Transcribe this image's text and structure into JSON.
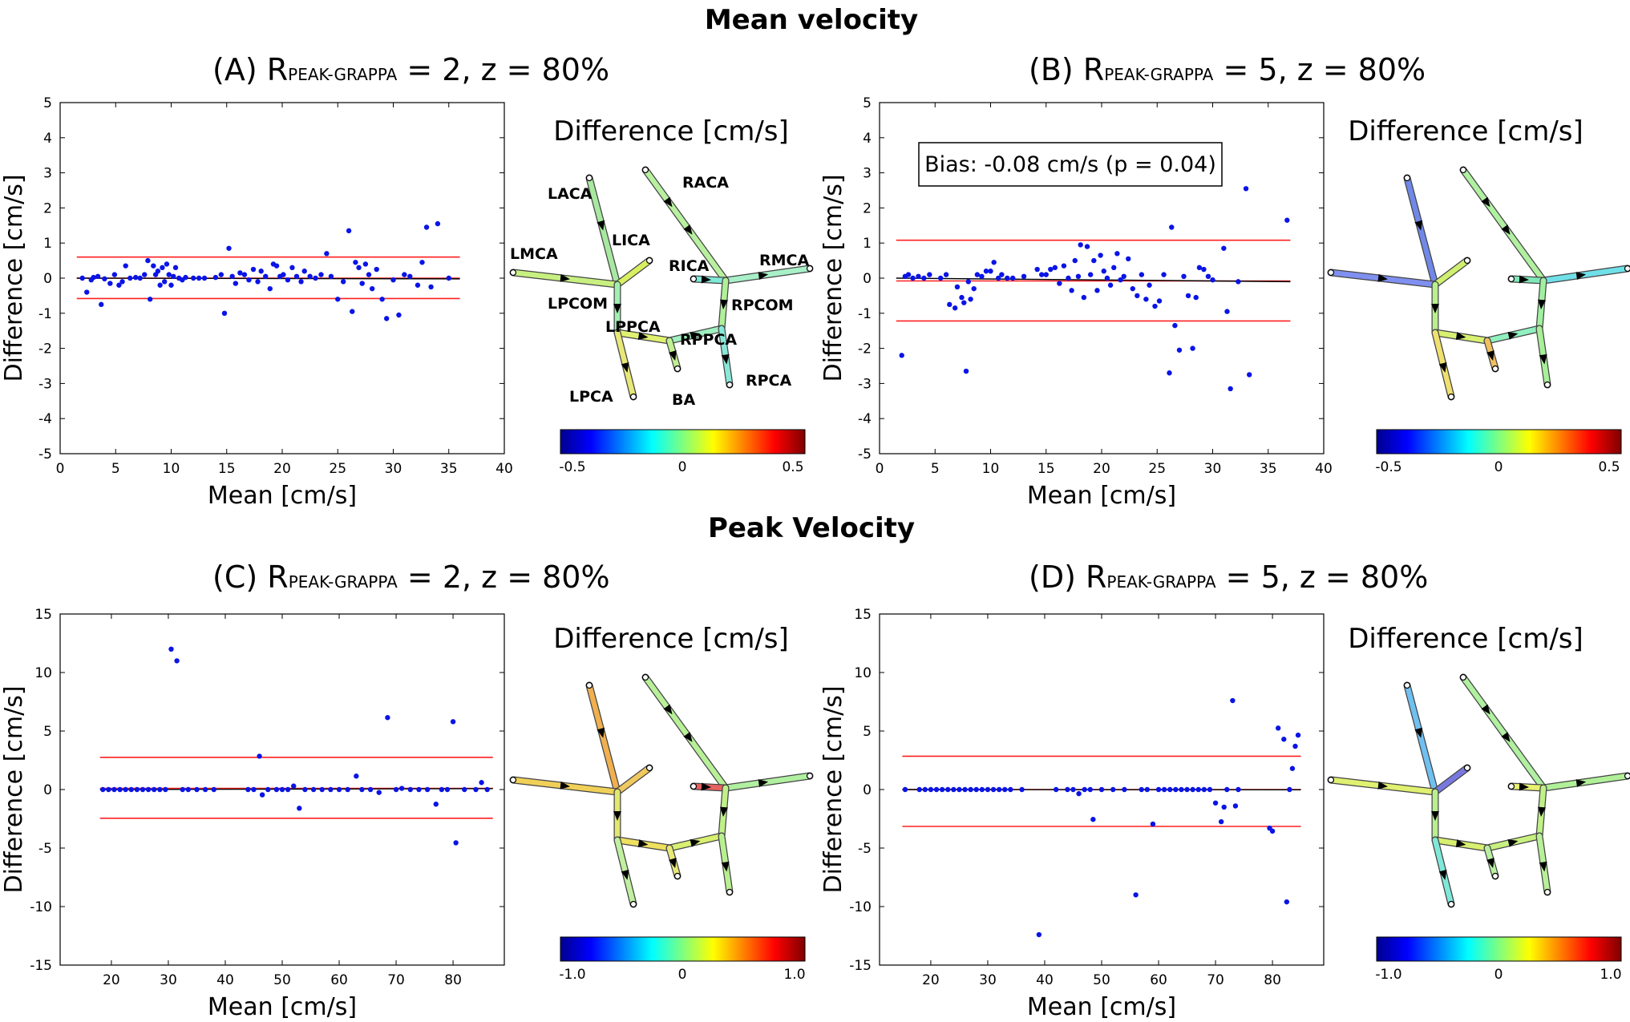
{
  "sections": {
    "top_title": "Mean velocity",
    "bottom_title": "Peak Velocity"
  },
  "panels": [
    {
      "letter": "(A)",
      "r_main": "R",
      "r_sub": "PEAK-GRAPPA",
      "rest": "= 2, z = 80%"
    },
    {
      "letter": "(B)",
      "r_main": "R",
      "r_sub": "PEAK-GRAPPA",
      "rest": "= 5, z = 80%"
    },
    {
      "letter": "(C)",
      "r_main": "R",
      "r_sub": "PEAK-GRAPPA",
      "rest": "= 2, z = 80%"
    },
    {
      "letter": "(D)",
      "r_main": "R",
      "r_sub": "PEAK-GRAPPA",
      "rest": "= 5, z = 80%"
    }
  ],
  "diff_title": "Difference [cm/s]",
  "vessel_labels": [
    "LACA",
    "RACA",
    "LICA",
    "LMCA",
    "RICA",
    "RMCA",
    "LPCOM",
    "RPCOM",
    "LPPCA",
    "RPPCA",
    "LPCA",
    "BA",
    "RPCA"
  ],
  "colorbars": [
    {
      "ticks": [
        "-0.5",
        "0",
        "0.5"
      ]
    },
    {
      "ticks": [
        "-0.5",
        "0",
        "0.5"
      ]
    },
    {
      "ticks": [
        "-1.0",
        "0",
        "1.0"
      ]
    },
    {
      "ticks": [
        "-1.0",
        "0",
        "1.0"
      ]
    }
  ],
  "colors": {
    "points": "#0a14e6",
    "loa": "#ff2020",
    "bias": "#000000"
  },
  "chart_data": [
    {
      "type": "scatter",
      "title": "(A) RPEAK-GRAPPA = 2, z = 80%",
      "xlabel": "Mean [cm/s]",
      "ylabel": "Difference [cm/s]",
      "xlim": [
        0,
        40
      ],
      "ylim": [
        -5,
        5
      ],
      "xticks": [
        0,
        5,
        10,
        15,
        20,
        25,
        30,
        35,
        40
      ],
      "yticks": [
        -5,
        -4,
        -3,
        -2,
        -1,
        0,
        1,
        2,
        3,
        4,
        5
      ],
      "x_range": [
        1.5,
        36
      ],
      "bias": 0.0,
      "loa_upper": 0.6,
      "loa_lower": -0.58,
      "points": [
        [
          2,
          0
        ],
        [
          2.4,
          -0.4
        ],
        [
          2.8,
          -0.05
        ],
        [
          3,
          0.02
        ],
        [
          3.4,
          0.05
        ],
        [
          3.7,
          -0.75
        ],
        [
          4,
          -0.02
        ],
        [
          4.5,
          -0.15
        ],
        [
          4.9,
          0.1
        ],
        [
          5.3,
          -0.2
        ],
        [
          5.6,
          -0.1
        ],
        [
          5.9,
          0.35
        ],
        [
          6.3,
          0
        ],
        [
          6.8,
          0.02
        ],
        [
          7.2,
          0
        ],
        [
          7.6,
          0.1
        ],
        [
          7.9,
          0.5
        ],
        [
          8.1,
          -0.6
        ],
        [
          8.4,
          0.35
        ],
        [
          8.6,
          0.1
        ],
        [
          8.8,
          0.2
        ],
        [
          9,
          -0.2
        ],
        [
          9.2,
          0.3
        ],
        [
          9.4,
          -0.1
        ],
        [
          9.6,
          0.4
        ],
        [
          9.8,
          0.1
        ],
        [
          10,
          -0.2
        ],
        [
          10.2,
          0.05
        ],
        [
          10.4,
          0.3
        ],
        [
          10.7,
          0
        ],
        [
          11,
          -0.05
        ],
        [
          11.3,
          0.02
        ],
        [
          12,
          0
        ],
        [
          12.5,
          0
        ],
        [
          13,
          0
        ],
        [
          14,
          0.02
        ],
        [
          14.5,
          0.1
        ],
        [
          14.8,
          -1.0
        ],
        [
          15.2,
          0.85
        ],
        [
          15.5,
          0.05
        ],
        [
          15.8,
          -0.15
        ],
        [
          16.2,
          0.15
        ],
        [
          16.6,
          0.1
        ],
        [
          17,
          -0.05
        ],
        [
          17.4,
          0.25
        ],
        [
          17.8,
          -0.1
        ],
        [
          18.1,
          0.2
        ],
        [
          18.5,
          0.05
        ],
        [
          18.9,
          -0.3
        ],
        [
          19.2,
          0.4
        ],
        [
          19.5,
          0.35
        ],
        [
          19.8,
          0.05
        ],
        [
          20.1,
          0.1
        ],
        [
          20.5,
          -0.05
        ],
        [
          20.9,
          0.3
        ],
        [
          21.3,
          0.05
        ],
        [
          21.7,
          -0.1
        ],
        [
          22,
          0.2
        ],
        [
          22.5,
          0.05
        ],
        [
          23,
          0
        ],
        [
          23.5,
          0.1
        ],
        [
          24,
          0.7
        ],
        [
          24.4,
          0.05
        ],
        [
          25,
          -0.6
        ],
        [
          25.5,
          -0.1
        ],
        [
          26,
          1.35
        ],
        [
          26.3,
          -0.95
        ],
        [
          26.6,
          0.45
        ],
        [
          26.9,
          0.3
        ],
        [
          27.2,
          -0.15
        ],
        [
          27.5,
          0.4
        ],
        [
          27.8,
          0.1
        ],
        [
          28.1,
          -0.3
        ],
        [
          28.5,
          0.25
        ],
        [
          29,
          -0.6
        ],
        [
          29.4,
          -1.15
        ],
        [
          30,
          -0.05
        ],
        [
          30.5,
          -1.05
        ],
        [
          31,
          0.1
        ],
        [
          31.5,
          0.05
        ],
        [
          32.2,
          -0.2
        ],
        [
          32.6,
          0.45
        ],
        [
          33,
          1.45
        ],
        [
          33.4,
          -0.25
        ],
        [
          34,
          1.55
        ],
        [
          35,
          0
        ]
      ]
    },
    {
      "type": "scatter",
      "title": "(B) RPEAK-GRAPPA = 5, z = 80%",
      "xlabel": "Mean [cm/s]",
      "ylabel": "Difference [cm/s]",
      "xlim": [
        0,
        40
      ],
      "ylim": [
        -5,
        5
      ],
      "xticks": [
        0,
        5,
        10,
        15,
        20,
        25,
        30,
        35,
        40
      ],
      "yticks": [
        -5,
        -4,
        -3,
        -2,
        -1,
        0,
        1,
        2,
        3,
        4,
        5
      ],
      "x_range": [
        1.5,
        37
      ],
      "bias": -0.08,
      "loa_upper": 1.08,
      "loa_lower": -1.22,
      "annotation": "Bias: -0.08 cm/s (p = 0.04)",
      "points": [
        [
          2,
          -2.2
        ],
        [
          2.3,
          0.05
        ],
        [
          2.6,
          0.1
        ],
        [
          3,
          0
        ],
        [
          3.5,
          0.05
        ],
        [
          4,
          0
        ],
        [
          4.5,
          0.1
        ],
        [
          5.5,
          0
        ],
        [
          6,
          0.1
        ],
        [
          6.3,
          -0.75
        ],
        [
          6.8,
          -0.85
        ],
        [
          7,
          -0.25
        ],
        [
          7.4,
          -0.55
        ],
        [
          7.6,
          -0.7
        ],
        [
          7.8,
          -2.65
        ],
        [
          8,
          -0.1
        ],
        [
          8.2,
          -0.6
        ],
        [
          8.5,
          -0.3
        ],
        [
          8.8,
          0.1
        ],
        [
          9.2,
          0.05
        ],
        [
          9.6,
          0.2
        ],
        [
          10,
          0.2
        ],
        [
          10.3,
          0.45
        ],
        [
          10.7,
          0
        ],
        [
          11,
          0.1
        ],
        [
          11.5,
          0
        ],
        [
          12,
          0
        ],
        [
          13,
          0.05
        ],
        [
          14.2,
          0.25
        ],
        [
          14.6,
          0.1
        ],
        [
          15,
          0.1
        ],
        [
          15.4,
          0.25
        ],
        [
          15.8,
          0.3
        ],
        [
          16.2,
          -0.15
        ],
        [
          16.6,
          0.35
        ],
        [
          17,
          0
        ],
        [
          17.3,
          -0.35
        ],
        [
          17.6,
          0.5
        ],
        [
          17.9,
          0.05
        ],
        [
          18.1,
          0.95
        ],
        [
          18.4,
          -0.55
        ],
        [
          18.7,
          0.9
        ],
        [
          19,
          0.1
        ],
        [
          19.3,
          0.5
        ],
        [
          19.6,
          -0.35
        ],
        [
          19.9,
          0.65
        ],
        [
          20.2,
          0.2
        ],
        [
          20.5,
          0
        ],
        [
          20.8,
          -0.2
        ],
        [
          21.1,
          0.3
        ],
        [
          21.4,
          0.7
        ],
        [
          21.7,
          -0.05
        ],
        [
          22,
          0.05
        ],
        [
          22.4,
          0.55
        ],
        [
          22.8,
          -0.3
        ],
        [
          23.2,
          -0.5
        ],
        [
          23.6,
          0.1
        ],
        [
          24,
          -0.6
        ],
        [
          24.3,
          -0.2
        ],
        [
          24.8,
          -0.8
        ],
        [
          25.2,
          -0.65
        ],
        [
          25.6,
          0.1
        ],
        [
          26.1,
          -2.7
        ],
        [
          26.3,
          1.45
        ],
        [
          26.6,
          -1.35
        ],
        [
          27,
          -2.05
        ],
        [
          27.4,
          0.05
        ],
        [
          27.8,
          -0.5
        ],
        [
          28.2,
          -2.0
        ],
        [
          28.5,
          -0.55
        ],
        [
          28.8,
          0.3
        ],
        [
          29.2,
          0.25
        ],
        [
          29.6,
          0.05
        ],
        [
          30,
          -0.05
        ],
        [
          31,
          0.85
        ],
        [
          31.3,
          -0.95
        ],
        [
          31.6,
          -3.15
        ],
        [
          32.3,
          -0.1
        ],
        [
          33,
          2.55
        ],
        [
          33.3,
          -2.75
        ],
        [
          36.7,
          1.65
        ]
      ]
    },
    {
      "type": "scatter",
      "title": "(C) RPEAK-GRAPPA = 2, z = 80%",
      "xlabel": "Mean [cm/s]",
      "ylabel": "Difference [cm/s]",
      "xlim": [
        11,
        89
      ],
      "ylim": [
        -15,
        15
      ],
      "xticks": [
        20,
        30,
        40,
        50,
        60,
        70,
        80
      ],
      "yticks": [
        -15,
        -10,
        -5,
        0,
        5,
        10,
        15
      ],
      "x_range": [
        18,
        87
      ],
      "bias": 0.1,
      "loa_upper": 2.75,
      "loa_lower": -2.45,
      "points": [
        [
          18.5,
          0
        ],
        [
          19.5,
          0
        ],
        [
          20.5,
          0
        ],
        [
          21.5,
          0
        ],
        [
          22.5,
          0
        ],
        [
          23.5,
          0
        ],
        [
          24.5,
          0
        ],
        [
          25.5,
          0
        ],
        [
          26.5,
          0
        ],
        [
          27.5,
          0
        ],
        [
          28.5,
          0
        ],
        [
          29.5,
          0
        ],
        [
          30.5,
          12
        ],
        [
          31.5,
          11
        ],
        [
          32.5,
          0
        ],
        [
          33.5,
          0
        ],
        [
          35,
          0
        ],
        [
          36.5,
          0
        ],
        [
          38,
          0
        ],
        [
          44,
          0
        ],
        [
          45,
          0
        ],
        [
          46,
          2.85
        ],
        [
          46.5,
          -0.45
        ],
        [
          47.5,
          0
        ],
        [
          49,
          0
        ],
        [
          50,
          0
        ],
        [
          51,
          0
        ],
        [
          52,
          0.3
        ],
        [
          53,
          -1.6
        ],
        [
          54,
          0
        ],
        [
          55.5,
          0
        ],
        [
          57,
          0
        ],
        [
          58.5,
          0
        ],
        [
          60,
          0
        ],
        [
          61.5,
          0
        ],
        [
          63,
          1.15
        ],
        [
          64,
          0
        ],
        [
          65.5,
          0
        ],
        [
          67,
          -0.25
        ],
        [
          68.5,
          6.15
        ],
        [
          70,
          0
        ],
        [
          71,
          0.1
        ],
        [
          72.5,
          0
        ],
        [
          74,
          0
        ],
        [
          75.5,
          0
        ],
        [
          77,
          -1.25
        ],
        [
          78,
          0
        ],
        [
          79,
          0
        ],
        [
          80,
          5.8
        ],
        [
          80.5,
          -4.55
        ],
        [
          82,
          0
        ],
        [
          84,
          0
        ],
        [
          85,
          0.6
        ],
        [
          86,
          0
        ]
      ]
    },
    {
      "type": "scatter",
      "title": "(D) RPEAK-GRAPPA = 5, z = 80%",
      "xlabel": "Mean [cm/s]",
      "ylabel": "Difference [cm/s]",
      "xlim": [
        11,
        89
      ],
      "ylim": [
        -15,
        15
      ],
      "xticks": [
        20,
        30,
        40,
        50,
        60,
        70,
        80
      ],
      "yticks": [
        -15,
        -10,
        -5,
        0,
        5,
        10,
        15
      ],
      "x_range": [
        15,
        85
      ],
      "bias": 0.0,
      "loa_upper": 2.85,
      "loa_lower": -3.15,
      "points": [
        [
          15.5,
          0
        ],
        [
          18,
          0
        ],
        [
          19,
          0
        ],
        [
          20,
          0
        ],
        [
          21,
          0
        ],
        [
          22,
          0
        ],
        [
          23,
          0
        ],
        [
          24,
          0
        ],
        [
          25,
          0
        ],
        [
          26,
          0
        ],
        [
          27,
          0
        ],
        [
          28,
          0
        ],
        [
          29,
          0
        ],
        [
          30,
          0
        ],
        [
          31,
          0
        ],
        [
          32,
          0
        ],
        [
          33,
          0
        ],
        [
          34,
          0
        ],
        [
          36,
          0
        ],
        [
          39,
          -12.4
        ],
        [
          42,
          0
        ],
        [
          44,
          0
        ],
        [
          45,
          0
        ],
        [
          46,
          -0.35
        ],
        [
          47,
          0
        ],
        [
          48,
          0
        ],
        [
          48.5,
          -2.55
        ],
        [
          50,
          0
        ],
        [
          52,
          0
        ],
        [
          54,
          0
        ],
        [
          56,
          -9.0
        ],
        [
          57,
          0
        ],
        [
          58,
          0
        ],
        [
          59,
          -2.95
        ],
        [
          60,
          0
        ],
        [
          61,
          0
        ],
        [
          62,
          0
        ],
        [
          63,
          0
        ],
        [
          64,
          0
        ],
        [
          65,
          0
        ],
        [
          66,
          0
        ],
        [
          67,
          0
        ],
        [
          68,
          0
        ],
        [
          69,
          0
        ],
        [
          70,
          -1.15
        ],
        [
          71,
          -2.75
        ],
        [
          71.5,
          -1.5
        ],
        [
          72,
          0
        ],
        [
          73,
          7.6
        ],
        [
          73.5,
          -1.4
        ],
        [
          74,
          0
        ],
        [
          79.5,
          -3.3
        ],
        [
          80,
          -3.55
        ],
        [
          81,
          5.25
        ],
        [
          82,
          4.3
        ],
        [
          82.5,
          -9.6
        ],
        [
          83,
          0
        ],
        [
          83.5,
          1.8
        ],
        [
          84,
          3.7
        ],
        [
          84.5,
          4.65
        ]
      ]
    }
  ]
}
